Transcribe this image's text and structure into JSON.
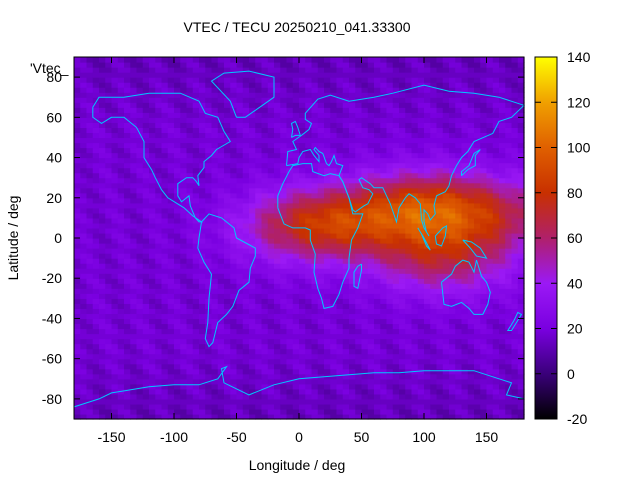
{
  "chart_data": {
    "type": "heatmap",
    "title": "VTEC / TECU 20250210_041.33300",
    "xlabel": "Longitude / deg",
    "ylabel": "Latitude / deg",
    "series_label": "'Vtec_",
    "xlim": [
      -180,
      180
    ],
    "ylim": [
      -90,
      90
    ],
    "xticks": [
      -150,
      -100,
      -50,
      0,
      50,
      100,
      150
    ],
    "yticks": [
      -80,
      -60,
      -40,
      -20,
      0,
      20,
      40,
      60,
      80
    ],
    "colorbar": {
      "range": [
        -20,
        140
      ],
      "ticks": [
        -20,
        0,
        20,
        40,
        60,
        80,
        100,
        120,
        140
      ],
      "palette": [
        "#000000",
        "#3a007a",
        "#7a00e0",
        "#9b19f5",
        "#b0206a",
        "#c83000",
        "#e06000",
        "#f0a000",
        "#ffff00"
      ]
    },
    "field_model": {
      "background_tec": 18,
      "enhancement_peaks": [
        {
          "lon": 100,
          "lat": 15,
          "tec": 60
        },
        {
          "lon": 30,
          "lat": 8,
          "tec": 45
        },
        {
          "lon": 115,
          "lat": -10,
          "tec": 42
        },
        {
          "lon": 160,
          "lat": 12,
          "tec": 35
        },
        {
          "lon": -5,
          "lat": 5,
          "tec": 25
        }
      ]
    },
    "coastline_color": "#00c8ff"
  }
}
